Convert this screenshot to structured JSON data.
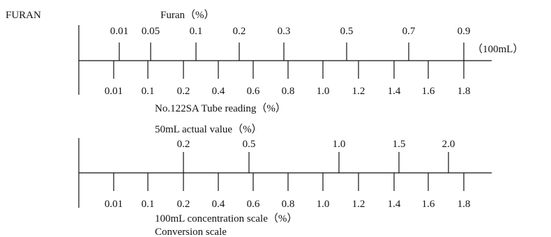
{
  "substance_label": "FURAN",
  "chart1": {
    "top_title": "Furan（%）",
    "top_ticks": [
      "0.01",
      "0.05",
      "0.1",
      "0.2",
      "0.3",
      "0.5",
      "0.7",
      "0.9"
    ],
    "top_unit": "（100mL）",
    "bottom_ticks": [
      "0.01",
      "0.1",
      "0.2",
      "0.4",
      "0.6",
      "0.8",
      "1.0",
      "1.2",
      "1.4",
      "1.6",
      "1.8"
    ],
    "bottom_title": "No.122SA Tube reading（%）"
  },
  "chart2": {
    "top_title": "50mL actual value（%）",
    "top_ticks": [
      "0.2",
      "0.5",
      "1.0",
      "1.5",
      "2.0"
    ],
    "bottom_ticks": [
      "0.01",
      "0.1",
      "0.2",
      "0.4",
      "0.6",
      "0.8",
      "1.0",
      "1.2",
      "1.4",
      "1.6",
      "1.8"
    ],
    "bottom_title": "100mL concentration scale（%）",
    "caption": "Conversion scale"
  }
}
